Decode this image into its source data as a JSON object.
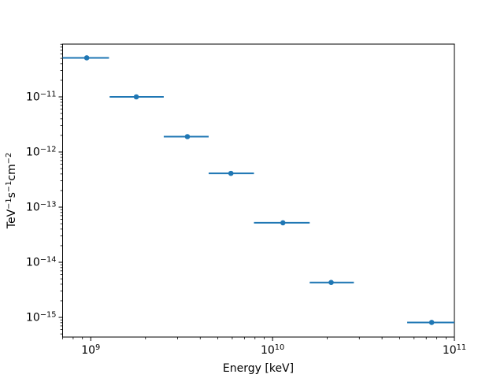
{
  "chart_data": {
    "type": "scatter",
    "subtype": "errorbar",
    "title": "",
    "xlabel": "Energy [keV]",
    "ylabel": "TeV⁻¹s⁻¹cm⁻²",
    "ylabel_parts": [
      {
        "t": "TeV"
      },
      {
        "s": "−1"
      },
      {
        "t": "s"
      },
      {
        "s": "−1"
      },
      {
        "t": "cm"
      },
      {
        "s": "−2"
      }
    ],
    "xscale": "log",
    "yscale": "log",
    "xlim": [
      700000000.0,
      100000000000.0
    ],
    "ylim": [
      4.4e-16,
      9.06e-11
    ],
    "grid": false,
    "legend": false,
    "colors": {
      "series": "#1f77b4",
      "axis": "#000000",
      "background": "#ffffff"
    },
    "tick_base": "10",
    "x_ticks": [
      {
        "value": 1000000000.0,
        "exp": "9"
      },
      {
        "value": 10000000000.0,
        "exp": "10"
      },
      {
        "value": 100000000000.0,
        "exp": "11"
      }
    ],
    "y_ticks": [
      {
        "value": 1e-11,
        "exp": "−11"
      },
      {
        "value": 1e-12,
        "exp": "−12"
      },
      {
        "value": 1e-13,
        "exp": "−13"
      },
      {
        "value": 1e-14,
        "exp": "−14"
      },
      {
        "value": 1e-15,
        "exp": "−15"
      }
    ],
    "points": [
      {
        "x": 950000000.0,
        "y": 5.1e-11,
        "xlo": 700000000.0,
        "xhi": 1260000000.0
      },
      {
        "x": 1780000000.0,
        "y": 1e-11,
        "xlo": 1270000000.0,
        "xhi": 2520000000.0
      },
      {
        "x": 3400000000.0,
        "y": 1.9e-12,
        "xlo": 2520000000.0,
        "xhi": 4450000000.0
      },
      {
        "x": 5900000000.0,
        "y": 4.1e-13,
        "xlo": 4450000000.0,
        "xhi": 7900000000.0
      },
      {
        "x": 11400000000.0,
        "y": 5.2e-14,
        "xlo": 7900000000.0,
        "xhi": 16000000000.0
      },
      {
        "x": 21000000000.0,
        "y": 4.3e-15,
        "xlo": 16000000000.0,
        "xhi": 28000000000.0
      },
      {
        "x": 75000000000.0,
        "y": 8.1e-16,
        "xlo": 55000000000.0,
        "xhi": 100000000000.0
      }
    ]
  }
}
